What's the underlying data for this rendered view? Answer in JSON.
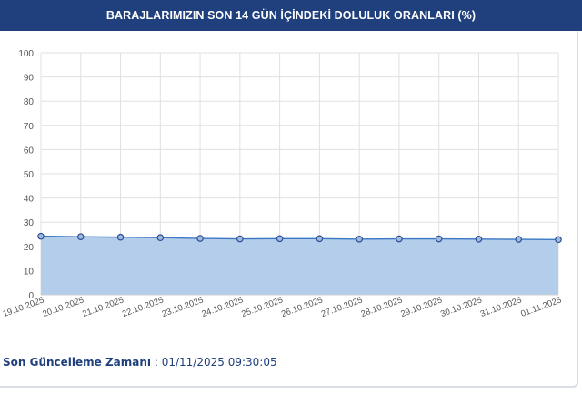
{
  "header": {
    "title": "BARAJLARIMIZIN SON 14 GÜN İÇİNDEKİ DOLULUK ORANLARI (%)"
  },
  "footer": {
    "update_label": "Son Güncelleme Zamanı",
    "separator": " : ",
    "update_value": "01/11/2025 09:30:05"
  },
  "colors": {
    "header_bg": "#1f3f7d",
    "line": "#3a78c4",
    "area": "#b3cdeb",
    "marker_fill": "#9fb9e0",
    "marker_stroke": "#2a4f93",
    "grid": "#e0e0e0"
  },
  "chart_data": {
    "type": "area",
    "title": "BARAJLARIMIZIN SON 14 GÜN İÇİNDEKİ DOLULUK ORANLARI (%)",
    "xlabel": "",
    "ylabel": "",
    "ylim": [
      0,
      100
    ],
    "yticks": [
      0,
      10,
      20,
      30,
      40,
      50,
      60,
      70,
      80,
      90,
      100
    ],
    "grid": true,
    "categories": [
      "19.10.2025",
      "20.10.2025",
      "21.10.2025",
      "22.10.2025",
      "23.10.2025",
      "24.10.2025",
      "25.10.2025",
      "26.10.2025",
      "27.10.2025",
      "28.10.2025",
      "29.10.2025",
      "30.10.2025",
      "31.10.2025",
      "01.11.2025"
    ],
    "series": [
      {
        "values": [
          24.2,
          24.0,
          23.8,
          23.6,
          23.3,
          23.1,
          23.2,
          23.2,
          23.0,
          23.1,
          23.1,
          23.0,
          22.9,
          22.8
        ]
      }
    ]
  }
}
